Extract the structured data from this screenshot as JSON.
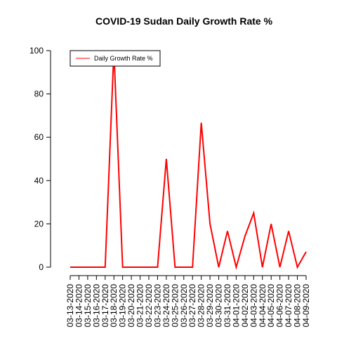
{
  "chart_data": {
    "type": "line",
    "title": "COVID-19 Sudan Daily Growth Rate %",
    "xlabel": "",
    "ylabel": "",
    "categories": [
      "03-13-2020",
      "03-14-2020",
      "03-15-2020",
      "03-16-2020",
      "03-17-2020",
      "03-18-2020",
      "03-19-2020",
      "03-20-2020",
      "03-21-2020",
      "03-22-2020",
      "03-23-2020",
      "03-24-2020",
      "03-25-2020",
      "03-26-2020",
      "03-27-2020",
      "03-28-2020",
      "03-29-2020",
      "03-30-2020",
      "03-31-2020",
      "04-01-2020",
      "04-02-2020",
      "04-03-2020",
      "04-04-2020",
      "04-05-2020",
      "04-06-2020",
      "04-07-2020",
      "04-08-2020",
      "04-09-2020"
    ],
    "series": [
      {
        "name": "Daily Growth Rate %",
        "color": "#ff0000",
        "values": [
          0,
          0,
          0,
          0,
          0,
          100,
          0,
          0,
          0,
          0,
          0,
          50,
          0,
          0,
          0,
          66.7,
          20,
          0,
          16.7,
          0,
          14.3,
          25,
          0,
          20,
          0,
          16.7,
          0,
          7.1
        ]
      }
    ],
    "ylim": [
      0,
      100
    ],
    "yticks": [
      0,
      20,
      40,
      60,
      80,
      100
    ],
    "grid": false,
    "legend_position": "top-left"
  }
}
